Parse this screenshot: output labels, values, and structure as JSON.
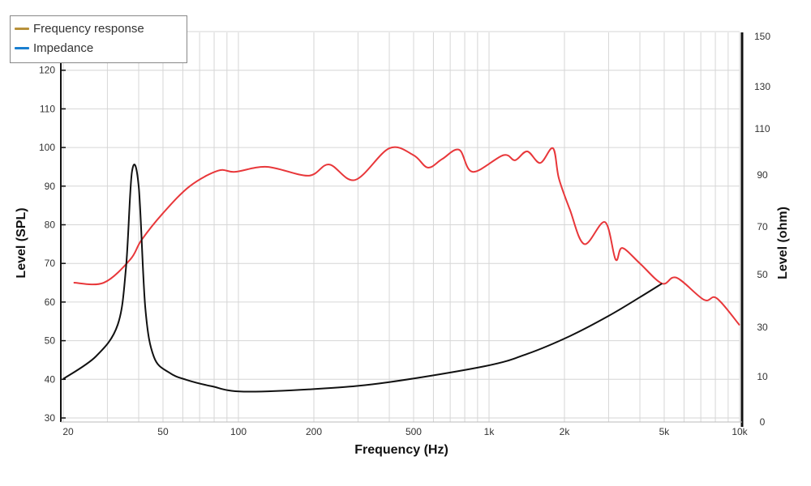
{
  "chart_data": {
    "type": "line",
    "xlabel": "Frequency (Hz)",
    "ylabel": "Level (SPL)",
    "ylabel_right": "Level (ohm)",
    "xscale": "log",
    "xlim": [
      20,
      10000
    ],
    "ylim": [
      29,
      130
    ],
    "x_ticks": [
      {
        "v": 20,
        "label": "20"
      },
      {
        "v": 50,
        "label": "50"
      },
      {
        "v": 100,
        "label": "100"
      },
      {
        "v": 200,
        "label": "200"
      },
      {
        "v": 500,
        "label": "500"
      },
      {
        "v": 1000,
        "label": "1k"
      },
      {
        "v": 2000,
        "label": "2k"
      },
      {
        "v": 5000,
        "label": "5k"
      },
      {
        "v": 10000,
        "label": "10k"
      }
    ],
    "y_ticks": [
      "30",
      "40",
      "50",
      "60",
      "70",
      "80",
      "90",
      "100",
      "110",
      "120"
    ],
    "y_right_ticks": [
      "0",
      "10",
      "30",
      "50",
      "70",
      "90",
      "110",
      "130",
      "150"
    ],
    "grid": true,
    "legend": {
      "placement": "top-left",
      "entries": [
        {
          "label": "Frequency response",
          "color": "#b8913a"
        },
        {
          "label": "Impedance",
          "color": "#1a7fd0"
        }
      ]
    },
    "series": [
      {
        "name": "Frequency response",
        "axis": "left",
        "color": "#e8373a",
        "x": [
          22,
          29,
          37,
          41,
          50,
          64,
          83,
          97,
          130,
          190,
          230,
          292,
          400,
          500,
          570,
          650,
          760,
          860,
          1140,
          1270,
          1420,
          1600,
          1800,
          1900,
          2100,
          2400,
          2900,
          3200,
          3400,
          4000,
          4900,
          5600,
          7200,
          8100,
          10000
        ],
        "y": [
          65,
          65,
          71,
          76,
          83,
          90,
          94,
          93.7,
          95,
          92.7,
          95.6,
          91.6,
          99.8,
          98,
          94.8,
          97,
          99.4,
          93.7,
          98,
          96.7,
          99,
          96,
          99.8,
          92,
          84,
          75,
          80.7,
          71,
          74,
          70,
          64.8,
          66.3,
          60.6,
          61,
          54
        ]
      },
      {
        "name": "Impedance",
        "axis": "right",
        "color": "#111111",
        "x": [
          20,
          27,
          33,
          35.6,
          37.6,
          40,
          42.5,
          46,
          53,
          62,
          78,
          105,
          220,
          400,
          970,
          1420,
          2100,
          3000,
          4000,
          4900
        ],
        "y": [
          9.5,
          18.2,
          31,
          53,
          91.4,
          85.6,
          37.4,
          18,
          11.6,
          9.3,
          7.9,
          6.7,
          7.4,
          8.8,
          14.3,
          19.2,
          26.4,
          34.3,
          41.4,
          46.6
        ]
      }
    ]
  }
}
